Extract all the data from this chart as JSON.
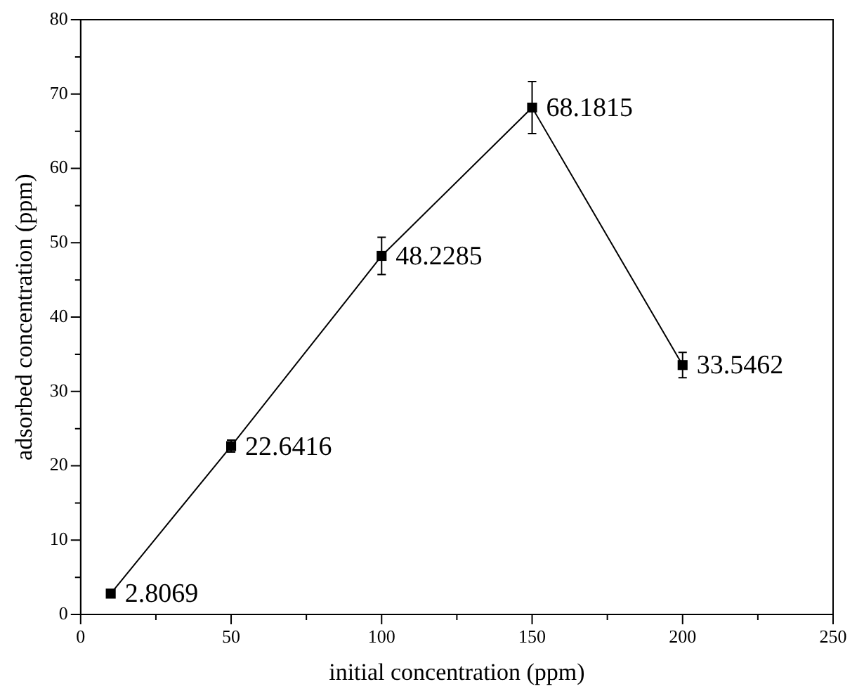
{
  "chart_data": {
    "type": "line",
    "xlabel": "initial concentration (ppm)",
    "ylabel": "adsorbed concentration (ppm)",
    "x": [
      10,
      50,
      100,
      150,
      200
    ],
    "series": [
      {
        "color": "#000000",
        "values": [
          2.8069,
          22.6416,
          48.2285,
          68.1815,
          33.5462
        ],
        "errors": [
          null,
          0.8,
          2.5,
          3.5,
          1.7
        ]
      }
    ],
    "data_labels": true,
    "marker": "square",
    "line_style": "solid",
    "grid": false,
    "legend": false,
    "xlim": [
      0,
      250
    ],
    "xticks": [
      0,
      {
        "value": 25,
        "label": null
      },
      50,
      {
        "value": 75,
        "label": null
      },
      100,
      {
        "value": 125,
        "label": null
      },
      150,
      {
        "value": 175,
        "label": null
      },
      200,
      {
        "value": 225,
        "label": null
      },
      250
    ],
    "ylim": [
      0,
      80
    ],
    "yticks": [
      0,
      {
        "value": 5,
        "label": null
      },
      10,
      {
        "value": 15,
        "label": null
      },
      20,
      {
        "value": 25,
        "label": null
      },
      30,
      {
        "value": 35,
        "label": null
      },
      40,
      {
        "value": 45,
        "label": null
      },
      50,
      {
        "value": 55,
        "label": null
      },
      60,
      {
        "value": 65,
        "label": null
      },
      70,
      {
        "value": 75,
        "label": null
      },
      80
    ]
  }
}
